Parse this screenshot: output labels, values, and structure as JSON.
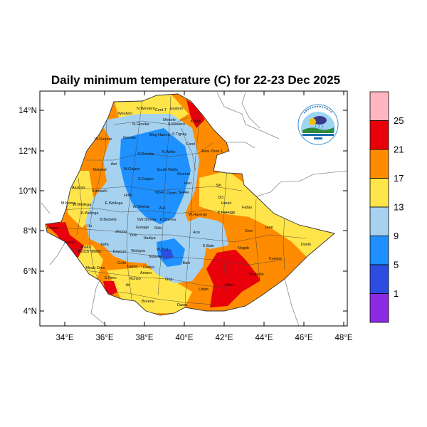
{
  "title": "Daily minimum temperature (C) for 22-23 Dec 2025",
  "axes": {
    "lon_ticks": [
      "34°E",
      "36°E",
      "38°E",
      "40°E",
      "42°E",
      "44°E",
      "46°E",
      "48°E"
    ],
    "lat_ticks": [
      "14°N",
      "12°N",
      "10°N",
      "8°N",
      "6°N",
      "4°N"
    ]
  },
  "colorbar": {
    "labels": [
      "25",
      "21",
      "17",
      "13",
      "9",
      "5",
      "1"
    ],
    "bands": [
      {
        "color": "#ffb6c1"
      },
      {
        "color": "#e8000b"
      },
      {
        "color": "#ff8c00"
      },
      {
        "color": "#ffe54a"
      },
      {
        "color": "#a6d2f0"
      },
      {
        "color": "#1e90ff"
      },
      {
        "color": "#2d4de0"
      },
      {
        "color": "#8a2be2"
      }
    ]
  },
  "regions": [
    {
      "name": "N.Western"
    },
    {
      "name": "Cent.T"
    },
    {
      "name": "Eastern"
    },
    {
      "name": "Western"
    },
    {
      "name": "Mekele"
    },
    {
      "name": "S.Eastern"
    },
    {
      "name": "Kilbati"
    },
    {
      "name": "N.Gondar"
    },
    {
      "name": "Wag Hamra"
    },
    {
      "name": "S.Tigray"
    },
    {
      "name": "Gondar"
    },
    {
      "name": "W.Gondar"
    },
    {
      "name": "S.Gondar"
    },
    {
      "name": "N.Wollo"
    },
    {
      "name": "Fanti"
    },
    {
      "name": "Awsi Zone 1"
    },
    {
      "name": "Metekel"
    },
    {
      "name": "Awi"
    },
    {
      "name": "W.Gojam"
    },
    {
      "name": "South Wello"
    },
    {
      "name": "Oromia"
    },
    {
      "name": "E.Gojam"
    },
    {
      "name": "Hari"
    },
    {
      "name": "Siti"
    },
    {
      "name": "Assosa"
    },
    {
      "name": "Kamashi"
    },
    {
      "name": "Horo"
    },
    {
      "name": "NSH"
    },
    {
      "name": "Orom"
    },
    {
      "name": "SHAR"
    },
    {
      "name": "DD"
    },
    {
      "name": "Harari"
    },
    {
      "name": "Fafan"
    },
    {
      "name": "M.Komo"
    },
    {
      "name": "W.Wellega"
    },
    {
      "name": "E.Wellega"
    },
    {
      "name": "W.Shewa"
    },
    {
      "name": "W.Harerge"
    },
    {
      "name": "E.Harerge"
    },
    {
      "name": "A.A"
    },
    {
      "name": "K.Wellega"
    },
    {
      "name": "B.Bedelle"
    },
    {
      "name": "SW.Shewa"
    },
    {
      "name": "E.Shewa"
    },
    {
      "name": "Nuwer"
    },
    {
      "name": "Ilu"
    },
    {
      "name": "Jimma"
    },
    {
      "name": "Gurage"
    },
    {
      "name": "Silte"
    },
    {
      "name": "Arsi"
    },
    {
      "name": "Erer"
    },
    {
      "name": "Jarar"
    },
    {
      "name": "Anuak"
    },
    {
      "name": "Kefa"
    },
    {
      "name": "Yem"
    },
    {
      "name": "Hadiya"
    },
    {
      "name": "Sheka"
    },
    {
      "name": "Bench Sheko"
    },
    {
      "name": "Dawuro"
    },
    {
      "name": "Wolayta"
    },
    {
      "name": "W.Arsi"
    },
    {
      "name": "E.Bale"
    },
    {
      "name": "Nogob"
    },
    {
      "name": "Doolo"
    },
    {
      "name": "Sidama"
    },
    {
      "name": "Mirab Omo"
    },
    {
      "name": "Gofa"
    },
    {
      "name": "Gamo"
    },
    {
      "name": "Bale"
    },
    {
      "name": "Shabelle"
    },
    {
      "name": "Korahe"
    },
    {
      "name": "Amaro"
    },
    {
      "name": "Guji"
    },
    {
      "name": "Gedeo"
    },
    {
      "name": "S.Omo"
    },
    {
      "name": "Konso"
    },
    {
      "name": "Liban"
    },
    {
      "name": "Afder"
    },
    {
      "name": "Borena"
    },
    {
      "name": "Dawa"
    },
    {
      "name": "Ari"
    }
  ]
}
